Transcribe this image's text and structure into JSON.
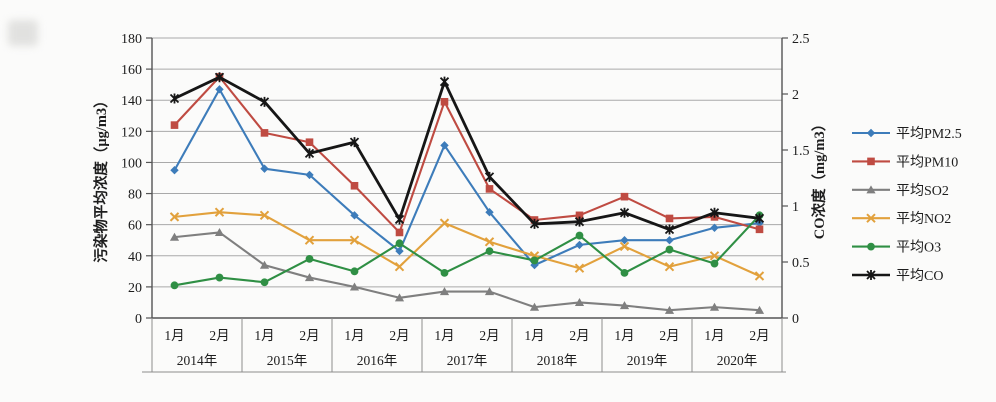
{
  "chart_data": {
    "type": "line",
    "title": "",
    "month_labels": [
      "1月",
      "2月",
      "1月",
      "2月",
      "1月",
      "2月",
      "1月",
      "2月",
      "1月",
      "2月",
      "1月",
      "2月",
      "1月",
      "2月"
    ],
    "year_groups": [
      "2014年",
      "2015年",
      "2016年",
      "2017年",
      "2018年",
      "2019年",
      "2020年"
    ],
    "ylabel_left": "污染物平均浓度（μg/m3）",
    "ylabel_right": "CO浓度（mg/m3）",
    "ylim_left": [
      0,
      180
    ],
    "ytick_step_left": 20,
    "ylim_right": [
      0,
      2.5
    ],
    "ytick_step_right": 0.5,
    "grid": true,
    "legend_position": "right",
    "series": [
      {
        "key": "pm2_5",
        "name": "平均PM2.5",
        "axis": "left",
        "color": "#3d7cba",
        "marker": "diamond",
        "values": [
          95,
          147,
          96,
          92,
          66,
          43,
          111,
          68,
          34,
          47,
          50,
          50,
          58,
          61
        ]
      },
      {
        "key": "pm10",
        "name": "平均PM10",
        "axis": "left",
        "color": "#bf4b42",
        "marker": "square",
        "values": [
          124,
          155,
          119,
          113,
          85,
          55,
          139,
          83,
          63,
          66,
          78,
          64,
          65,
          57
        ]
      },
      {
        "key": "so2",
        "name": "平均SO2",
        "axis": "left",
        "color": "#7f7f7f",
        "marker": "triangle",
        "values": [
          52,
          55,
          34,
          26,
          20,
          13,
          17,
          17,
          7,
          10,
          8,
          5,
          7,
          5
        ]
      },
      {
        "key": "no2",
        "name": "平均NO2",
        "axis": "left",
        "color": "#e2a13c",
        "marker": "x",
        "values": [
          65,
          68,
          66,
          50,
          50,
          33,
          61,
          49,
          40,
          32,
          46,
          33,
          40,
          27
        ]
      },
      {
        "key": "o3",
        "name": "平均O3",
        "axis": "left",
        "color": "#2f8f44",
        "marker": "circle",
        "values": [
          21,
          26,
          23,
          38,
          30,
          48,
          29,
          43,
          37,
          53,
          29,
          44,
          35,
          66
        ]
      },
      {
        "key": "co",
        "name": "平均CO",
        "axis": "right",
        "color": "#161616",
        "marker": "star",
        "values": [
          1.96,
          2.15,
          1.93,
          1.47,
          1.57,
          0.88,
          2.11,
          1.26,
          0.84,
          0.86,
          0.94,
          0.79,
          0.94,
          0.89
        ]
      }
    ],
    "colors": {
      "grid": "#a9a9a9",
      "axis": "#555555",
      "text": "#1d1d1d",
      "separator": "#8c8c8c"
    }
  }
}
